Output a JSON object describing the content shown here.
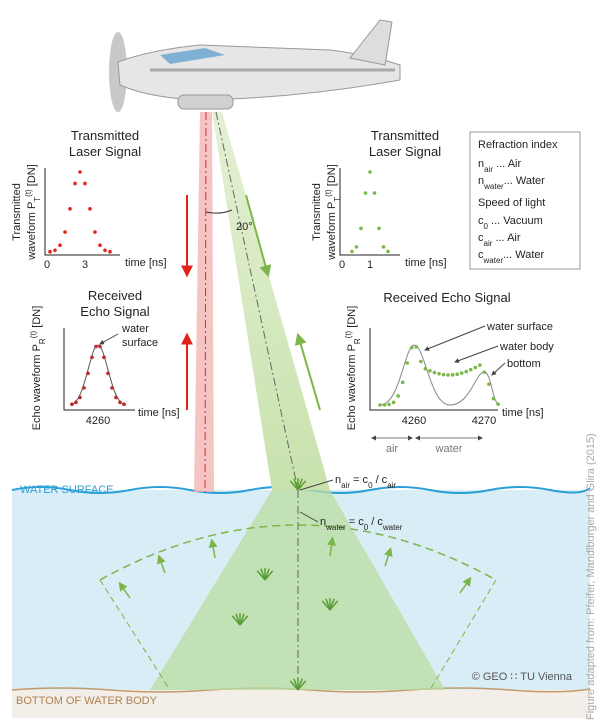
{
  "left_transmitted": {
    "title": [
      "Transmitted",
      "Laser Signal"
    ],
    "y_label": [
      [
        {
          "text": "Transmitted"
        }
      ],
      [
        {
          "text": "waveform P"
        },
        {
          "text": "T",
          "sub": true
        },
        {
          "text": "(t)",
          "sup": true
        },
        {
          "text": " [DN]"
        }
      ]
    ],
    "x_ticks": [
      "0",
      "3"
    ],
    "x_label": "time [ns]"
  },
  "right_transmitted": {
    "title": [
      "Transmitted",
      "Laser Signal"
    ],
    "y_label": [
      [
        {
          "text": "Transmitted"
        }
      ],
      [
        {
          "text": "waveform P"
        },
        {
          "text": "T",
          "sub": true
        },
        {
          "text": "(t)",
          "sup": true
        },
        {
          "text": " [DN]"
        }
      ]
    ],
    "x_ticks": [
      "0",
      "1"
    ],
    "x_label": "time [ns]"
  },
  "angle_label": "20°",
  "legend": {
    "refraction_title": "Refraction index",
    "refraction_items": [
      [
        {
          "text": "n"
        },
        {
          "text": "air",
          "sub": true
        },
        {
          "text": " ... Air"
        }
      ],
      [
        {
          "text": "n"
        },
        {
          "text": "water",
          "sub": true
        },
        {
          "text": "... Water"
        }
      ]
    ],
    "speed_title": "Speed of light",
    "speed_items": [
      [
        {
          "text": "c"
        },
        {
          "text": "0",
          "sub": true
        },
        {
          "text": "     ... Vacuum"
        }
      ],
      [
        {
          "text": "c"
        },
        {
          "text": "air",
          "sub": true
        },
        {
          "text": "   ... Air"
        }
      ],
      [
        {
          "text": "c"
        },
        {
          "text": "water",
          "sub": true
        },
        {
          "text": "... Water"
        }
      ]
    ]
  },
  "left_echo": {
    "title": [
      "Received",
      "Echo Signal"
    ],
    "y_label": [
      {
        "text": "Echo waveform P"
      },
      {
        "text": "R",
        "sub": true
      },
      {
        "text": "(t)",
        "sup": true
      },
      {
        "text": " [DN]"
      }
    ],
    "annotation": [
      "water",
      "surface"
    ],
    "x_ticks": [
      "4260"
    ],
    "x_label": "time [ns]"
  },
  "right_echo": {
    "title": "Received Echo Signal",
    "y_label": [
      {
        "text": "Echo waveform P"
      },
      {
        "text": "R",
        "sub": true
      },
      {
        "text": "(t)",
        "sup": true
      },
      {
        "text": " [DN]"
      }
    ],
    "annotations": [
      "water surface",
      "water body",
      "bottom"
    ],
    "x_ticks": [
      "4260",
      "4270"
    ],
    "x_label": "time [ns]",
    "ranges": [
      "air",
      "water"
    ]
  },
  "formulas": [
    [
      {
        "text": "n"
      },
      {
        "text": "air",
        "sub": true
      },
      {
        "text": " = c"
      },
      {
        "text": "0",
        "sub": true
      },
      {
        "text": " / c"
      },
      {
        "text": "air",
        "sub": true
      }
    ],
    [
      {
        "text": "n"
      },
      {
        "text": "water",
        "sub": true
      },
      {
        "text": " = c"
      },
      {
        "text": "0",
        "sub": true
      },
      {
        "text": " / c"
      },
      {
        "text": "water",
        "sub": true
      }
    ]
  ],
  "water_surface_label": "WATER SURFACE",
  "bottom_label": "BOTTOM OF WATER BODY",
  "copyright": "© GEO ∷ TU Vienna",
  "source": "Figure adapted from: Pfeifer, Mandlburger and Glira (2015)"
}
